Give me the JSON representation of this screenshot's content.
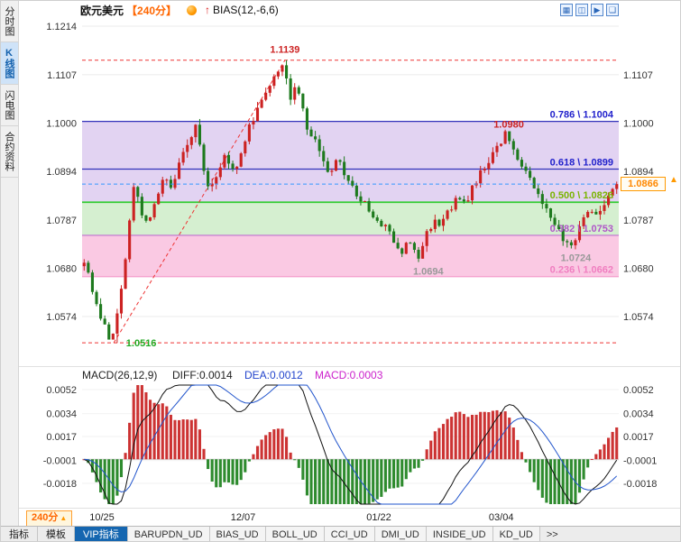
{
  "header": {
    "symbol": "欧元美元",
    "period": "【240分】",
    "indicator": "BIAS(12,-6,6)",
    "signal_arrow": "↑",
    "window_controls": [
      {
        "name": "grid-layout-icon",
        "glyph": "▦"
      },
      {
        "name": "tile-windows-icon",
        "glyph": "◫"
      },
      {
        "name": "next-chart-icon",
        "glyph": "▶"
      },
      {
        "name": "maximize-window-icon",
        "glyph": "❏"
      }
    ]
  },
  "sidebar": {
    "items": [
      {
        "label": "分时图",
        "name": "sidebar-tab-time-chart",
        "selected": false
      },
      {
        "label": "K线图",
        "name": "sidebar-tab-kline-chart",
        "selected": true
      },
      {
        "label": "闪电图",
        "name": "sidebar-tab-lightning-chart",
        "selected": false
      },
      {
        "label": "合约资料",
        "name": "sidebar-tab-contract-info",
        "selected": false
      }
    ]
  },
  "badge": {
    "value": "1.0866",
    "marker_glyph": "▲",
    "color": "#ff8800"
  },
  "xaxis": {
    "period_label": "240分",
    "up_triangle": "▲",
    "date_labels": [
      {
        "label": "10/25",
        "x": 0.037
      },
      {
        "label": "12/07",
        "x": 0.3
      },
      {
        "label": "01/22",
        "x": 0.553
      },
      {
        "label": "03/04",
        "x": 0.781
      }
    ]
  },
  "macd_header": {
    "title": "MACD(26,12,9)",
    "diff_label": "DIFF:0.0014",
    "dea_label": "DEA:0.0012",
    "macd_label": "MACD:0.0003",
    "title_color": "#222222",
    "diff_color": "#222222",
    "dea_color": "#2244cc",
    "macd_color": "#cc22cc"
  },
  "bottom_bar": {
    "tabs": [
      {
        "label": "指标",
        "name": "bottom-tab-indicators",
        "selected": false
      },
      {
        "label": "模板",
        "name": "bottom-tab-templates",
        "selected": false
      },
      {
        "label": "VIP指标",
        "name": "bottom-tab-vip-indicators",
        "selected": true
      }
    ],
    "indicators": [
      "BARUPDN_UD",
      "BIAS_UD",
      "BOLL_UD",
      "CCI_UD",
      "DMI_UD",
      "INSIDE_UD",
      "KD_UD"
    ],
    "more_label": ">>"
  },
  "chart_data": [
    {
      "type": "candlestick",
      "symbol": "欧元美元",
      "period": "240分",
      "colors": {
        "up": "#cc2222",
        "down": "#1e7a1e"
      },
      "y_axis": {
        "ticks": [
          1.1214,
          1.1107,
          1.1,
          1.0894,
          1.0787,
          1.068,
          1.0574
        ],
        "ticks_right": [
          1.1107,
          1.1,
          1.0894,
          1.0787,
          1.068,
          1.0574
        ]
      },
      "x_ticks": [
        "10/25",
        "12/07",
        "01/22",
        "03/04"
      ],
      "last_price": 1.0866,
      "current_price_line": {
        "price": 1.0866,
        "color": "#3399ff"
      },
      "fib_bands": [
        {
          "from": 1.1004,
          "to": 1.0826,
          "color": "#e2d3f2"
        },
        {
          "from": 1.0826,
          "to": 1.0753,
          "color": "#d5efd0"
        },
        {
          "from": 1.0753,
          "to": 1.0662,
          "color": "#fac9e3"
        }
      ],
      "fib_levels": [
        {
          "label": "0.786 \\ 1.1004",
          "price": 1.1004,
          "color": "#2222cc",
          "line_color": "#3333bb",
          "width": 1.2
        },
        {
          "label": "0.618 \\ 1.0899",
          "price": 1.0899,
          "color": "#2222cc",
          "line_color": "#3333bb",
          "width": 1.2
        },
        {
          "label": "0.500 \\ 1.0826",
          "price": 1.0826,
          "color": "#7ab400",
          "line_color": "#33cc33",
          "width": 1.8
        },
        {
          "label": "0.382 \\ 1.0753",
          "price": 1.0753,
          "color": "#b055c8",
          "line_color": "#c070d0",
          "width": 1.2
        },
        {
          "label": "0.236 \\ 1.0662",
          "price": 1.0662,
          "color": "#f07ec0",
          "line_color": "#f49ccc",
          "width": 1.2
        }
      ],
      "trend": {
        "color": "#ee3333",
        "low": 1.0516,
        "high": 1.1139,
        "x_low": 0.059,
        "x_high": 0.378
      },
      "annotations": [
        {
          "text": "1.1139",
          "x": 0.378,
          "price": 1.1139,
          "dy": -8,
          "color": "#cc2222",
          "anchor": "middle"
        },
        {
          "text": "1.0980",
          "x": 0.795,
          "price": 1.098,
          "dy": -5,
          "color": "#cc2222",
          "anchor": "middle"
        },
        {
          "text": "1.0694",
          "x": 0.645,
          "price": 1.0694,
          "dy": 14,
          "color": "#999999",
          "anchor": "middle"
        },
        {
          "text": "1.0724",
          "x": 0.92,
          "price": 1.0724,
          "dy": 14,
          "color": "#999999",
          "anchor": "middle"
        },
        {
          "text": "1.0516",
          "x": 0.082,
          "price": 1.0516,
          "dy": 4,
          "color": "#22aa22",
          "anchor": "start"
        }
      ],
      "num_candles": 130,
      "key_points": {
        "low": {
          "x": 0.059,
          "price": 1.0516
        },
        "high": {
          "x": 0.378,
          "price": 1.1139
        },
        "low2": {
          "x": 0.63,
          "price": 1.0694
        },
        "high2": {
          "x": 0.795,
          "price": 1.098
        },
        "low3": {
          "x": 0.916,
          "price": 1.0724
        },
        "last": 1.0866
      },
      "price_path": [
        [
          0.0,
          1.0685
        ],
        [
          0.01,
          1.0705
        ],
        [
          0.018,
          1.064
        ],
        [
          0.03,
          1.06
        ],
        [
          0.045,
          1.0555
        ],
        [
          0.059,
          1.0516
        ],
        [
          0.068,
          1.057
        ],
        [
          0.08,
          1.065
        ],
        [
          0.09,
          1.076
        ],
        [
          0.1,
          1.0865
        ],
        [
          0.112,
          1.0815
        ],
        [
          0.125,
          1.077
        ],
        [
          0.14,
          1.083
        ],
        [
          0.155,
          1.088
        ],
        [
          0.17,
          1.0855
        ],
        [
          0.185,
          1.091
        ],
        [
          0.2,
          1.0955
        ],
        [
          0.215,
          1.0995
        ],
        [
          0.228,
          1.092
        ],
        [
          0.24,
          1.0845
        ],
        [
          0.255,
          1.089
        ],
        [
          0.27,
          1.0935
        ],
        [
          0.285,
          1.0895
        ],
        [
          0.3,
          1.093
        ],
        [
          0.315,
          1.099
        ],
        [
          0.33,
          1.1035
        ],
        [
          0.345,
          1.107
        ],
        [
          0.36,
          1.1105
        ],
        [
          0.378,
          1.1139
        ],
        [
          0.392,
          1.106
        ],
        [
          0.405,
          1.1085
        ],
        [
          0.42,
          1.1
        ],
        [
          0.435,
          1.0965
        ],
        [
          0.45,
          1.0925
        ],
        [
          0.465,
          1.089
        ],
        [
          0.48,
          1.092
        ],
        [
          0.495,
          1.088
        ],
        [
          0.51,
          1.0855
        ],
        [
          0.525,
          1.083
        ],
        [
          0.54,
          1.0805
        ],
        [
          0.555,
          1.078
        ],
        [
          0.57,
          1.077
        ],
        [
          0.585,
          1.0745
        ],
        [
          0.6,
          1.072
        ],
        [
          0.615,
          1.074
        ],
        [
          0.63,
          1.0694
        ],
        [
          0.645,
          1.0755
        ],
        [
          0.66,
          1.079
        ],
        [
          0.675,
          1.0775
        ],
        [
          0.69,
          1.0815
        ],
        [
          0.705,
          1.084
        ],
        [
          0.72,
          1.0825
        ],
        [
          0.735,
          1.0865
        ],
        [
          0.75,
          1.0895
        ],
        [
          0.765,
          1.0925
        ],
        [
          0.78,
          1.0955
        ],
        [
          0.795,
          1.098
        ],
        [
          0.81,
          1.093
        ],
        [
          0.825,
          1.0895
        ],
        [
          0.84,
          1.087
        ],
        [
          0.855,
          1.0845
        ],
        [
          0.87,
          1.0815
        ],
        [
          0.885,
          1.0775
        ],
        [
          0.9,
          1.0745
        ],
        [
          0.916,
          1.0724
        ],
        [
          0.932,
          1.078
        ],
        [
          0.948,
          1.0815
        ],
        [
          0.964,
          1.0795
        ],
        [
          0.982,
          1.0835
        ],
        [
          1.0,
          1.0866
        ]
      ]
    },
    {
      "type": "macd",
      "title": "MACD(26,12,9)",
      "params": [
        26,
        12,
        9
      ],
      "values": {
        "diff": 0.0014,
        "dea": 0.0012,
        "macd": 0.0003
      },
      "y_axis": {
        "ticks": [
          0.0052,
          0.0034,
          0.0017,
          -0.0001,
          -0.0018
        ]
      },
      "colors": {
        "positive_bar": "#cc3333",
        "negative_bar": "#2e8b2e",
        "diff_line": "#111111",
        "dea_line": "#2255cc"
      }
    }
  ]
}
